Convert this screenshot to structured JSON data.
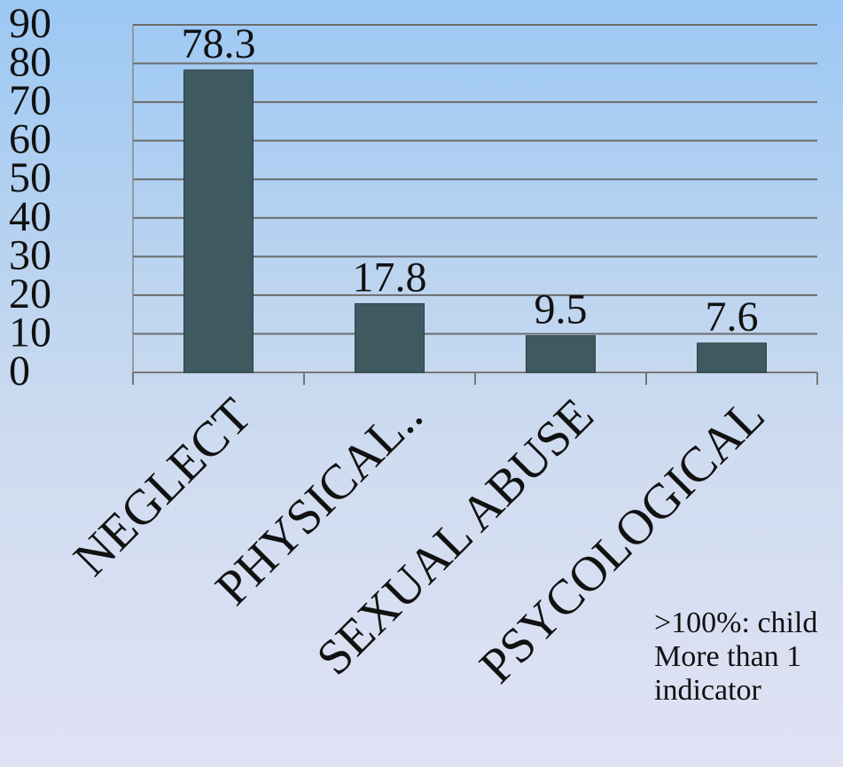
{
  "chart_data": {
    "type": "bar",
    "categories": [
      "NEGLECT",
      "PHYSICAL..",
      "SEXUAL ABUSE",
      "PSYCOLOGICAL"
    ],
    "values": [
      78.3,
      17.8,
      9.5,
      7.6
    ],
    "data_labels": [
      "78.3",
      "17.8",
      "9.5",
      "7.6"
    ],
    "title": "",
    "xlabel": "",
    "ylabel": "",
    "ylim": [
      0,
      90
    ],
    "yticks": [
      0,
      10,
      20,
      30,
      40,
      50,
      60,
      70,
      80,
      90
    ],
    "grid": true,
    "legend": "none",
    "bar_color": "#3e5a60",
    "grid_color": "#6b6b6b"
  },
  "note": {
    "lines": [
      ">100%: child",
      "More than 1",
      "indicator"
    ]
  }
}
